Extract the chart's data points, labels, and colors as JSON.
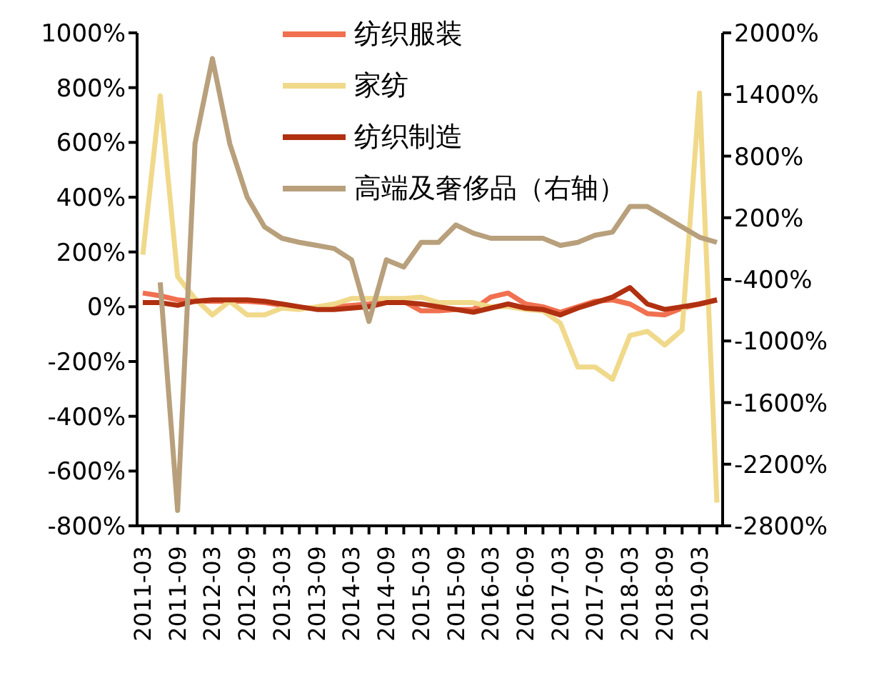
{
  "chart_data": {
    "type": "line",
    "categories": [
      "2011-03",
      null,
      "2011-09",
      null,
      "2012-03",
      null,
      "2012-09",
      null,
      "2013-03",
      null,
      "2013-09",
      null,
      "2014-03",
      null,
      "2014-09",
      null,
      "2015-03",
      null,
      "2015-09",
      null,
      "2016-03",
      null,
      "2016-09",
      null,
      "2017-03",
      null,
      "2017-09",
      null,
      "2018-03",
      null,
      "2018-09",
      null,
      "2019-03",
      null
    ],
    "series": [
      {
        "name": "纺织服装",
        "color": "#f07050",
        "values": [
          50,
          40,
          25,
          20,
          20,
          20,
          20,
          15,
          5,
          -5,
          -5,
          0,
          5,
          10,
          20,
          20,
          -15,
          -15,
          -10,
          -10,
          35,
          50,
          10,
          0,
          -20,
          0,
          20,
          25,
          10,
          -25,
          -30,
          -5,
          10,
          25
        ]
      },
      {
        "name": "家纺",
        "color": "#f0d98a",
        "values": [
          190,
          770,
          110,
          30,
          -30,
          20,
          -30,
          -30,
          -5,
          -10,
          0,
          10,
          30,
          30,
          30,
          30,
          35,
          15,
          15,
          15,
          0,
          0,
          -10,
          -15,
          -60,
          -220,
          -220,
          -265,
          -105,
          -90,
          -140,
          -85,
          780,
          -715
        ]
      },
      {
        "name": "纺织制造",
        "color": "#b03010",
        "values": [
          15,
          15,
          5,
          20,
          25,
          25,
          25,
          20,
          10,
          0,
          -10,
          -10,
          -5,
          0,
          15,
          15,
          10,
          0,
          -10,
          -20,
          -5,
          10,
          -5,
          -10,
          -30,
          -5,
          15,
          35,
          70,
          10,
          -10,
          0,
          10,
          25
        ]
      },
      {
        "name": "高端及奢侈品（右轴）",
        "color": "#b8a07c",
        "axis": "y2",
        "values": [
          null,
          -430,
          -2650,
          920,
          1750,
          920,
          400,
          110,
          0,
          -40,
          -70,
          -100,
          -210,
          -810,
          -210,
          -280,
          -40,
          -40,
          130,
          50,
          0,
          0,
          0,
          0,
          -70,
          -40,
          30,
          60,
          310,
          310,
          210,
          110,
          10,
          -40
        ]
      }
    ],
    "ylim": [
      -800,
      1000
    ],
    "yticks": [
      {
        "value": -800,
        "label": "-800%"
      },
      {
        "value": -600,
        "label": "-600%"
      },
      {
        "value": -400,
        "label": "-400%"
      },
      {
        "value": -200,
        "label": "-200%"
      },
      {
        "value": 0,
        "label": "0%"
      },
      {
        "value": 200,
        "label": "200%"
      },
      {
        "value": 400,
        "label": "400%"
      },
      {
        "value": 600,
        "label": "600%"
      },
      {
        "value": 800,
        "label": "800%"
      },
      {
        "value": 1000,
        "label": "1000%"
      }
    ],
    "y2lim": [
      -2800,
      2000
    ],
    "y2ticks": [
      {
        "value": -2800,
        "label": "-2800%"
      },
      {
        "value": -2200,
        "label": "-2200%"
      },
      {
        "value": -1600,
        "label": "-1600%"
      },
      {
        "value": -1000,
        "label": "-1000%"
      },
      {
        "value": -400,
        "label": "-400%"
      },
      {
        "value": 200,
        "label": "200%"
      },
      {
        "value": 800,
        "label": "800%"
      },
      {
        "value": 1400,
        "label": "1400%"
      },
      {
        "value": 2000,
        "label": "2000%"
      }
    ],
    "legend": "top",
    "grid": false,
    "marker": "none",
    "line_style": "solid"
  }
}
